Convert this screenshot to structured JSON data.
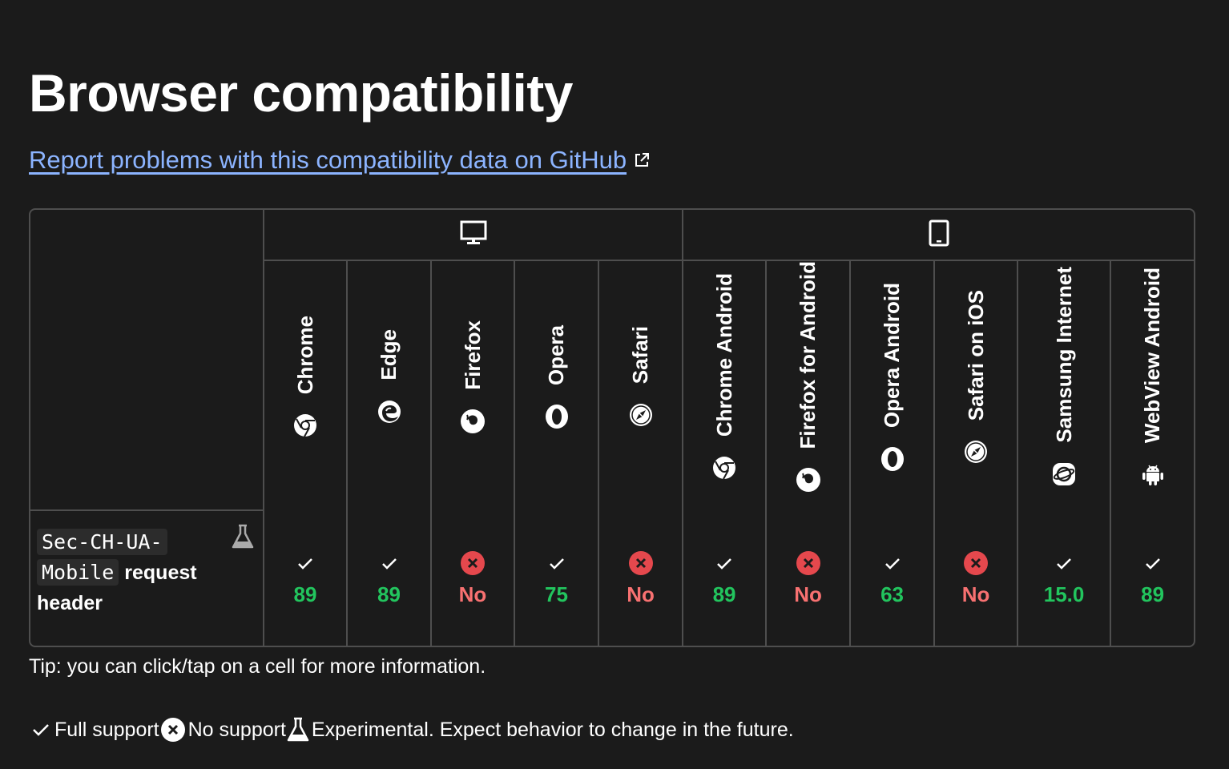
{
  "title": "Browser compatibility",
  "report_link": "Report problems with this compatibility data on GitHub",
  "platforms": [
    {
      "name": "desktop-icon"
    },
    {
      "name": "mobile-icon"
    }
  ],
  "browsers": [
    {
      "name": "Chrome",
      "icon": "chrome-icon"
    },
    {
      "name": "Edge",
      "icon": "edge-icon"
    },
    {
      "name": "Firefox",
      "icon": "firefox-icon"
    },
    {
      "name": "Opera",
      "icon": "opera-icon"
    },
    {
      "name": "Safari",
      "icon": "safari-icon"
    },
    {
      "name": "Chrome Android",
      "icon": "chrome-icon"
    },
    {
      "name": "Firefox for Android",
      "icon": "firefox-icon"
    },
    {
      "name": "Opera Android",
      "icon": "opera-icon"
    },
    {
      "name": "Safari on iOS",
      "icon": "safari-icon"
    },
    {
      "name": "Samsung Internet",
      "icon": "samsung-internet-icon"
    },
    {
      "name": "WebView Android",
      "icon": "android-icon"
    }
  ],
  "feature": {
    "code": "Sec-CH-UA-Mobile",
    "code_line1": "Sec-CH-UA-",
    "code_line2": "Mobile",
    "suffix": "request",
    "suffix2": "header",
    "experimental": true
  },
  "support": [
    {
      "status": "yes",
      "version": "89"
    },
    {
      "status": "yes",
      "version": "89"
    },
    {
      "status": "no",
      "version": "No"
    },
    {
      "status": "yes",
      "version": "75"
    },
    {
      "status": "no",
      "version": "No"
    },
    {
      "status": "yes",
      "version": "89"
    },
    {
      "status": "no",
      "version": "No"
    },
    {
      "status": "yes",
      "version": "63"
    },
    {
      "status": "no",
      "version": "No"
    },
    {
      "status": "yes",
      "version": "15.0"
    },
    {
      "status": "yes",
      "version": "89"
    }
  ],
  "tip": "Tip: you can click/tap on a cell for more information.",
  "legend": {
    "full_support": "Full support",
    "no_support": "No support",
    "experimental": "Experimental. Expect behavior to change in the future."
  },
  "colors": {
    "background": "#1b1b1b",
    "link": "#8cb4ff",
    "supported": "#22c55e",
    "unsupported": "#f87171",
    "no_badge": "#e5484d"
  }
}
